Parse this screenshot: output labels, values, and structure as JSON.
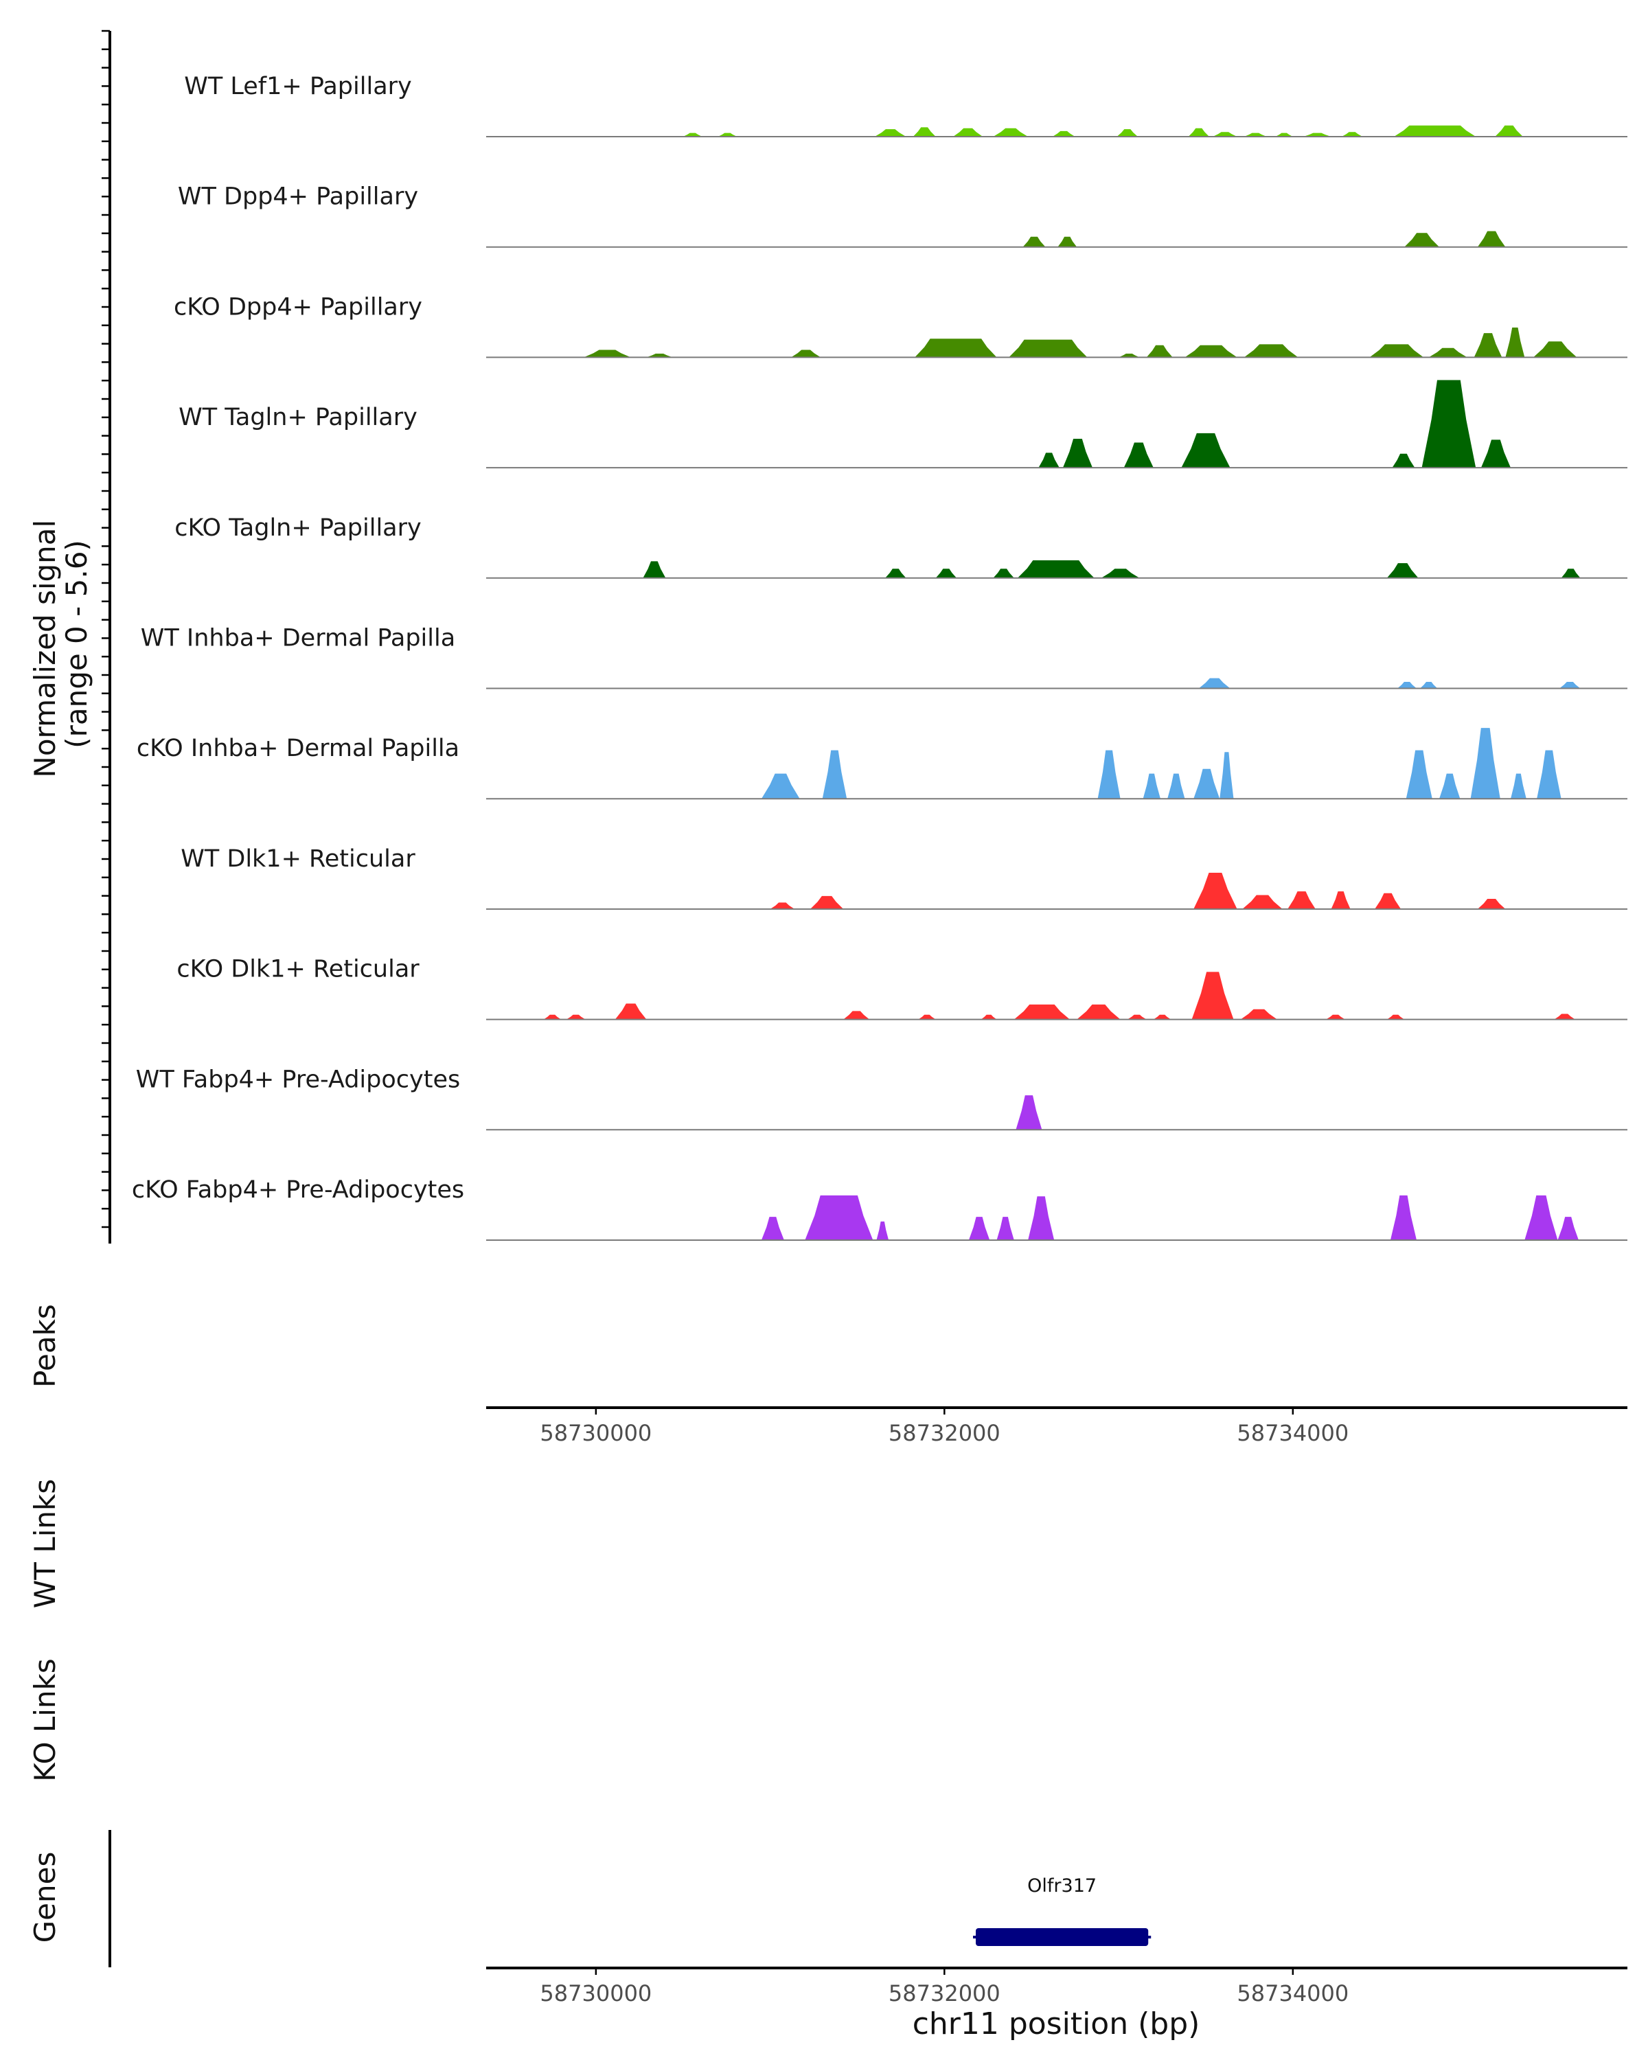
{
  "chart_data": {
    "type": "area",
    "xlabel": "chr11 position (bp)",
    "xlim": [
      58729370,
      58735920
    ],
    "xticks": [
      58730000,
      58732000,
      58734000
    ],
    "coverage_panel": {
      "ylabel_line1": "Normalized signal",
      "ylabel_line2": "(range 0 - 5.6)",
      "ylim": [
        0,
        5.6
      ]
    },
    "peaks_panel": {
      "label": "Peaks"
    },
    "wt_links_panel": {
      "label": "WT Links"
    },
    "ko_links_panel": {
      "label": "KO Links"
    },
    "genes_panel": {
      "label": "Genes",
      "genes": [
        {
          "name": "Olfr317",
          "start": 58732180,
          "end": 58733170
        }
      ]
    },
    "colors": {
      "lef1": "#66cd00",
      "dpp4": "#458b00",
      "tagln": "#006400",
      "inhba": "#5ba9e8",
      "dlk1": "#ff3030",
      "fabp4": "#a838f0",
      "gene": "#000080"
    },
    "series": [
      {
        "name": "WT Lef1+ Papillary",
        "color_key": "lef1",
        "peaks": [
          [
            58730500,
            58730610,
            0.2
          ],
          [
            58730700,
            58730810,
            0.2
          ],
          [
            58731600,
            58731780,
            0.4
          ],
          [
            58731820,
            58731950,
            0.5
          ],
          [
            58732050,
            58732220,
            0.45
          ],
          [
            58732280,
            58732480,
            0.45
          ],
          [
            58732620,
            58732750,
            0.3
          ],
          [
            58732990,
            58733110,
            0.4
          ],
          [
            58733400,
            58733520,
            0.45
          ],
          [
            58733540,
            58733680,
            0.25
          ],
          [
            58733720,
            58733850,
            0.2
          ],
          [
            58733900,
            58734000,
            0.2
          ],
          [
            58734060,
            58734220,
            0.2
          ],
          [
            58734280,
            58734400,
            0.25
          ],
          [
            58734580,
            58735050,
            0.6
          ],
          [
            58735160,
            58735320,
            0.6
          ]
        ]
      },
      {
        "name": "WT Dpp4+ Papillary",
        "color_key": "dpp4",
        "peaks": [
          [
            58732450,
            58732580,
            0.55
          ],
          [
            58732650,
            58732760,
            0.55
          ],
          [
            58734640,
            58734840,
            0.75
          ],
          [
            58735060,
            58735220,
            0.85
          ]
        ]
      },
      {
        "name": "cKO Dpp4+ Papillary",
        "color_key": "dpp4",
        "peaks": [
          [
            58729930,
            58730200,
            0.4
          ],
          [
            58730290,
            58730440,
            0.2
          ],
          [
            58731120,
            58731290,
            0.4
          ],
          [
            58731830,
            58732300,
            1.0
          ],
          [
            58732370,
            58732820,
            0.95
          ],
          [
            58733000,
            58733120,
            0.2
          ],
          [
            58733160,
            58733310,
            0.65
          ],
          [
            58733380,
            58733680,
            0.65
          ],
          [
            58733720,
            58734030,
            0.7
          ],
          [
            58734440,
            58734750,
            0.7
          ],
          [
            58734780,
            58735000,
            0.5
          ],
          [
            58735040,
            58735200,
            1.3
          ],
          [
            58735220,
            58735330,
            1.6
          ],
          [
            58735380,
            58735630,
            0.85
          ]
        ]
      },
      {
        "name": "WT Tagln+ Papillary",
        "color_key": "tagln",
        "peaks": [
          [
            58732540,
            58732660,
            0.8
          ],
          [
            58732680,
            58732850,
            1.55
          ],
          [
            58733030,
            58733200,
            1.35
          ],
          [
            58733360,
            58733640,
            1.85
          ],
          [
            58734570,
            58734700,
            0.75
          ],
          [
            58734740,
            58735050,
            4.7
          ],
          [
            58735080,
            58735250,
            1.5
          ]
        ]
      },
      {
        "name": "cKO Tagln+ Papillary",
        "color_key": "tagln",
        "peaks": [
          [
            58730270,
            58730400,
            0.9
          ],
          [
            58731660,
            58731780,
            0.5
          ],
          [
            58731950,
            58732070,
            0.5
          ],
          [
            58732280,
            58732400,
            0.5
          ],
          [
            58732420,
            58732860,
            0.95
          ],
          [
            58732900,
            58733120,
            0.5
          ],
          [
            58734540,
            58734720,
            0.8
          ],
          [
            58735540,
            58735650,
            0.5
          ]
        ]
      },
      {
        "name": "WT Inhba+ Dermal Papilla",
        "color_key": "inhba",
        "peaks": [
          [
            58733460,
            58733640,
            0.55
          ],
          [
            58734600,
            58734710,
            0.35
          ],
          [
            58734730,
            58734830,
            0.35
          ],
          [
            58735530,
            58735650,
            0.35
          ]
        ]
      },
      {
        "name": "cKO Inhba+ Dermal Papilla",
        "color_key": "inhba",
        "peaks": [
          [
            58730950,
            58731170,
            1.35
          ],
          [
            58731300,
            58731440,
            2.6
          ],
          [
            58732880,
            58733010,
            2.6
          ],
          [
            58733140,
            58733240,
            1.35
          ],
          [
            58733280,
            58733380,
            1.35
          ],
          [
            58733430,
            58733580,
            1.6
          ],
          [
            58733580,
            58733660,
            2.5
          ],
          [
            58734650,
            58734800,
            2.6
          ],
          [
            58734840,
            58734960,
            1.35
          ],
          [
            58735020,
            58735190,
            3.8
          ],
          [
            58735250,
            58735340,
            1.35
          ],
          [
            58735400,
            58735540,
            2.6
          ]
        ]
      },
      {
        "name": "WT Dlk1+ Reticular",
        "color_key": "dlk1",
        "peaks": [
          [
            58731000,
            58731140,
            0.35
          ],
          [
            58731230,
            58731420,
            0.7
          ],
          [
            58733430,
            58733680,
            1.95
          ],
          [
            58733710,
            58733940,
            0.75
          ],
          [
            58733970,
            58734130,
            0.95
          ],
          [
            58734220,
            58734330,
            0.95
          ],
          [
            58734470,
            58734620,
            0.85
          ],
          [
            58735060,
            58735220,
            0.55
          ]
        ]
      },
      {
        "name": "cKO Dlk1+ Reticular",
        "color_key": "dlk1",
        "peaks": [
          [
            58729700,
            58729800,
            0.25
          ],
          [
            58729830,
            58729940,
            0.25
          ],
          [
            58730110,
            58730290,
            0.85
          ],
          [
            58731420,
            58731570,
            0.45
          ],
          [
            58731850,
            58731950,
            0.25
          ],
          [
            58732210,
            58732300,
            0.25
          ],
          [
            58732400,
            58732720,
            0.8
          ],
          [
            58732760,
            58733010,
            0.8
          ],
          [
            58733050,
            58733160,
            0.25
          ],
          [
            58733200,
            58733300,
            0.25
          ],
          [
            58733420,
            58733660,
            2.55
          ],
          [
            58733700,
            58733910,
            0.55
          ],
          [
            58734190,
            58734300,
            0.25
          ],
          [
            58734540,
            58734640,
            0.25
          ],
          [
            58735500,
            58735620,
            0.3
          ]
        ]
      },
      {
        "name": "WT Fabp4+ Pre-Adipocytes",
        "color_key": "fabp4",
        "peaks": [
          [
            58732410,
            58732560,
            1.85
          ]
        ]
      },
      {
        "name": "cKO Fabp4+ Pre-Adipocytes",
        "color_key": "fabp4",
        "peaks": [
          [
            58730950,
            58731080,
            1.25
          ],
          [
            58731200,
            58731590,
            2.4
          ],
          [
            58731610,
            58731680,
            1.0
          ],
          [
            58732140,
            58732260,
            1.25
          ],
          [
            58732300,
            58732400,
            1.25
          ],
          [
            58732480,
            58732630,
            2.35
          ],
          [
            58734560,
            58734710,
            2.4
          ],
          [
            58735330,
            58735520,
            2.4
          ],
          [
            58735520,
            58735640,
            1.25
          ]
        ]
      }
    ]
  }
}
